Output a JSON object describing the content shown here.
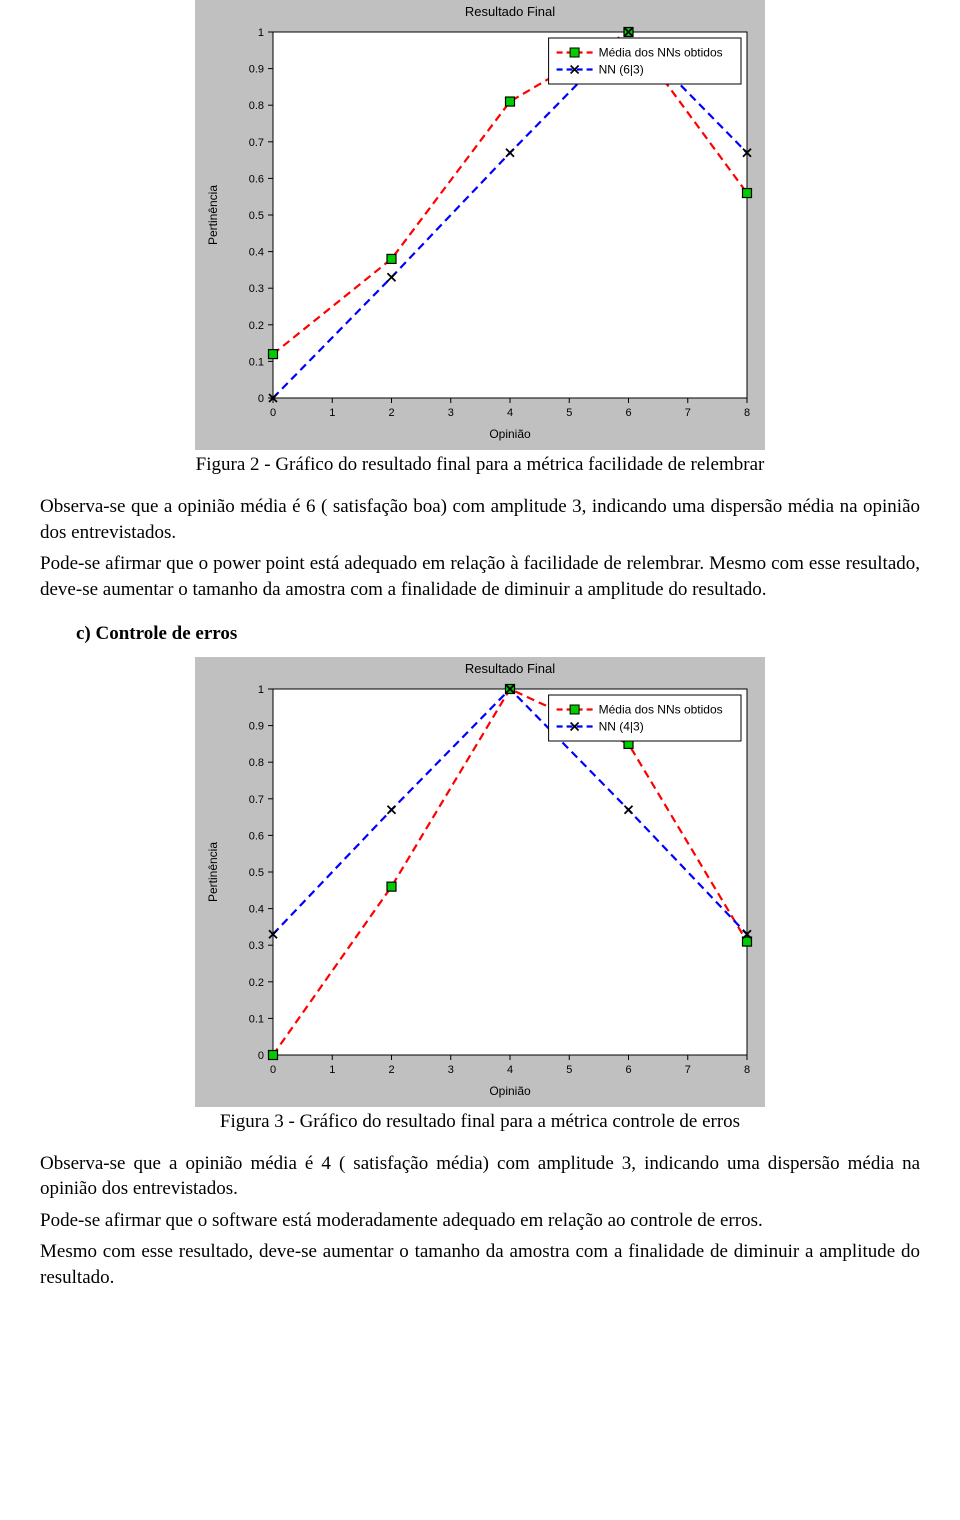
{
  "chart1": {
    "type": "line",
    "title": "Resultado Final",
    "xlabel": "Opinião",
    "ylabel": "Pertinência",
    "background": "#c0c0c0",
    "plot_bg": "#ffffff",
    "grid_color": "#000000",
    "text_color": "#000000",
    "title_fontsize": 13,
    "label_fontsize": 12,
    "tick_fontsize": 11,
    "xlim": [
      0,
      8
    ],
    "ylim": [
      0,
      1
    ],
    "xticks": [
      0,
      1,
      2,
      3,
      4,
      5,
      6,
      7,
      8
    ],
    "yticks": [
      0,
      0.1,
      0.2,
      0.3,
      0.4,
      0.5,
      0.6,
      0.7,
      0.8,
      0.9,
      1
    ],
    "legend": {
      "items": [
        {
          "label": "Média dos NNs obtidos",
          "color": "#ff0000",
          "marker": "square",
          "marker_fill": "#00cc00",
          "dash": true
        },
        {
          "label": "NN (6|3)",
          "color": "#0000ff",
          "marker": "x",
          "marker_fill": "#000000",
          "dash": true
        }
      ],
      "position": "top-right"
    },
    "series": [
      {
        "name": "Média dos NNs obtidos",
        "color": "#ff0000",
        "dash": [
          8,
          5
        ],
        "linewidth": 2.2,
        "marker": "square",
        "marker_size": 9,
        "marker_fill": "#00cc00",
        "marker_stroke": "#000000",
        "x": [
          0,
          2,
          4,
          6,
          8
        ],
        "y": [
          0.12,
          0.38,
          0.81,
          1.0,
          0.56
        ]
      },
      {
        "name": "NN (6|3)",
        "color": "#0000ff",
        "dash": [
          8,
          5
        ],
        "linewidth": 2.2,
        "marker": "x",
        "marker_size": 8,
        "marker_fill": "#000000",
        "marker_stroke": "#000000",
        "x": [
          0,
          2,
          4,
          6,
          8
        ],
        "y": [
          0.0,
          0.33,
          0.67,
          1.0,
          0.67
        ]
      }
    ]
  },
  "caption1": "Figura 2 - Gráfico do resultado final para a métrica facilidade de relembrar",
  "para1a": "Observa-se que a opinião média é 6 ( satisfação boa) com amplitude 3, indicando uma dispersão média na opinião dos entrevistados.",
  "para1b": "Pode-se afirmar que o power point está adequado em relação à facilidade de relembrar. Mesmo com esse resultado, deve-se aumentar o tamanho da amostra com a finalidade de diminuir a amplitude do resultado.",
  "sectionC": "c)  Controle de erros",
  "chart2": {
    "type": "line",
    "title": "Resultado Final",
    "xlabel": "Opinião",
    "ylabel": "Pertinência",
    "background": "#c0c0c0",
    "plot_bg": "#ffffff",
    "grid_color": "#000000",
    "text_color": "#000000",
    "title_fontsize": 13,
    "label_fontsize": 12,
    "tick_fontsize": 11,
    "xlim": [
      0,
      8
    ],
    "ylim": [
      0,
      1
    ],
    "xticks": [
      0,
      1,
      2,
      3,
      4,
      5,
      6,
      7,
      8
    ],
    "yticks": [
      0,
      0.1,
      0.2,
      0.3,
      0.4,
      0.5,
      0.6,
      0.7,
      0.8,
      0.9,
      1
    ],
    "legend": {
      "items": [
        {
          "label": "Média dos NNs obtidos",
          "color": "#ff0000",
          "marker": "square",
          "marker_fill": "#00cc00",
          "dash": true
        },
        {
          "label": "NN (4|3)",
          "color": "#0000ff",
          "marker": "x",
          "marker_fill": "#000000",
          "dash": true
        }
      ],
      "position": "top-right"
    },
    "series": [
      {
        "name": "Média dos NNs obtidos",
        "color": "#ff0000",
        "dash": [
          8,
          5
        ],
        "linewidth": 2.2,
        "marker": "square",
        "marker_size": 9,
        "marker_fill": "#00cc00",
        "marker_stroke": "#000000",
        "x": [
          0,
          2,
          4,
          6,
          8
        ],
        "y": [
          0.0,
          0.46,
          1.0,
          0.85,
          0.31
        ]
      },
      {
        "name": "NN (4|3)",
        "color": "#0000ff",
        "dash": [
          8,
          5
        ],
        "linewidth": 2.2,
        "marker": "x",
        "marker_size": 8,
        "marker_fill": "#000000",
        "marker_stroke": "#000000",
        "x": [
          0,
          2,
          4,
          6,
          8
        ],
        "y": [
          0.33,
          0.67,
          1.0,
          0.67,
          0.33
        ]
      }
    ]
  },
  "caption2": "Figura 3 - Gráfico do resultado final para a métrica controle de erros",
  "para2a": "Observa-se que a opinião média é 4 ( satisfação média) com amplitude 3, indicando uma dispersão média na opinião dos entrevistados.",
  "para2b": "Pode-se afirmar que o software está moderadamente adequado em relação ao controle de erros.",
  "para2c": "Mesmo com esse resultado, deve-se aumentar o tamanho da amostra com a finalidade de diminuir a amplitude do resultado."
}
